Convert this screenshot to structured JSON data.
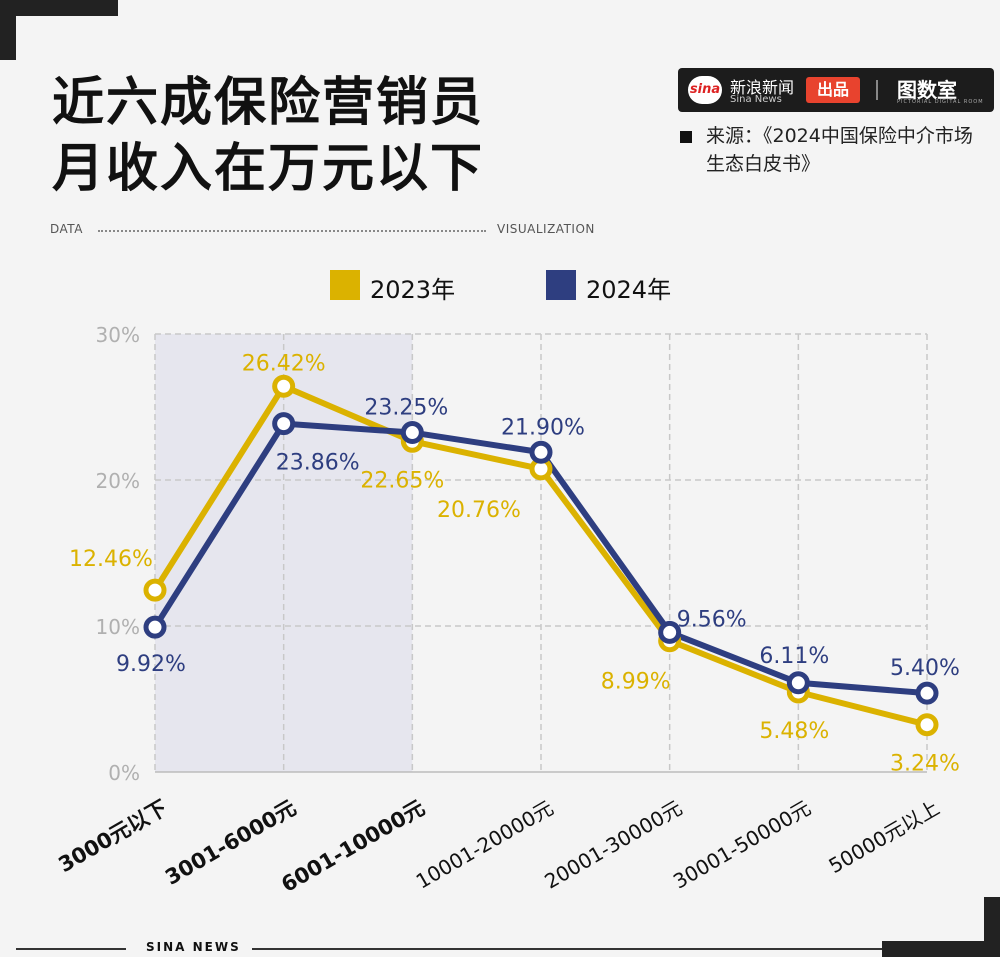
{
  "header": {
    "title_line1": "近六成保险营销员",
    "title_line2": "月收入在万元以下",
    "brand_name": "新浪新闻",
    "brand_sub": "Sina News",
    "brand_logo_text": "sina",
    "brand_tag": "出品",
    "brand_logo2": "图数室",
    "brand_logo2_sub": "PICTORIAL DIGITAL ROOM",
    "source_text": "来源：《2024中国保险中介市场生态白皮书》",
    "data_label": "DATA",
    "visualization_label": "VISUALIZATION"
  },
  "footer": {
    "text": "SINA NEWS"
  },
  "colors": {
    "y2023": "#dbb200",
    "y2024": "#2e3e80",
    "highlight": "#e6e6ee",
    "grid": "#c8c8c8"
  },
  "chart_data": {
    "type": "line",
    "categories": [
      "3000元以下",
      "3001-6000元",
      "6001-10000元",
      "10001-20000元",
      "20001-30000元",
      "30001-50000元",
      "50000元以上"
    ],
    "highlighted_categories": [
      0,
      1,
      2
    ],
    "series": [
      {
        "name": "2023年",
        "values": [
          12.46,
          26.42,
          22.65,
          20.76,
          8.99,
          5.48,
          3.24
        ],
        "labels": [
          "12.46%",
          "26.42%",
          "22.65%",
          "20.76%",
          "8.99%",
          "5.48%",
          "3.24%"
        ]
      },
      {
        "name": "2024年",
        "values": [
          9.92,
          23.86,
          23.25,
          21.9,
          9.56,
          6.11,
          5.4
        ],
        "labels": [
          "9.92%",
          "23.86%",
          "23.25%",
          "21.90%",
          "9.56%",
          "6.11%",
          "5.40%"
        ]
      }
    ],
    "yticks": [
      "0%",
      "10%",
      "20%",
      "30%"
    ],
    "ylim": [
      0,
      30
    ],
    "grid": true,
    "legend_position": "top-center"
  }
}
